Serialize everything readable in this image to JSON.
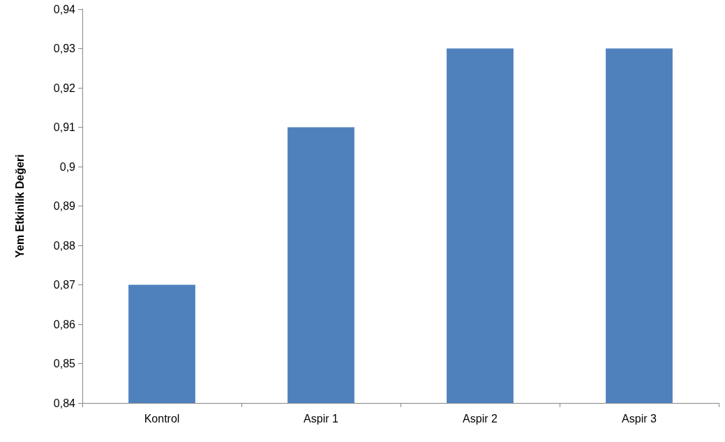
{
  "chart_data": {
    "type": "bar",
    "ylabel": "Yem Etkinlik Değeri",
    "categories": [
      "Kontrol",
      "Aspir 1",
      "Aspir 2",
      "Aspir 3"
    ],
    "values": [
      0.87,
      0.91,
      0.93,
      0.93
    ],
    "color": "#4f81bd",
    "ylim": [
      0.84,
      0.94
    ],
    "yticks": [
      {
        "value": 0.84,
        "label": "0,84"
      },
      {
        "value": 0.85,
        "label": "0,85"
      },
      {
        "value": 0.86,
        "label": "0,86"
      },
      {
        "value": 0.87,
        "label": "0,87"
      },
      {
        "value": 0.88,
        "label": "0,88"
      },
      {
        "value": 0.89,
        "label": "0,89"
      },
      {
        "value": 0.9,
        "label": "0,9"
      },
      {
        "value": 0.91,
        "label": "0,91"
      },
      {
        "value": 0.92,
        "label": "0,92"
      },
      {
        "value": 0.93,
        "label": "0,93"
      },
      {
        "value": 0.94,
        "label": "0,94"
      }
    ],
    "grid": false
  }
}
